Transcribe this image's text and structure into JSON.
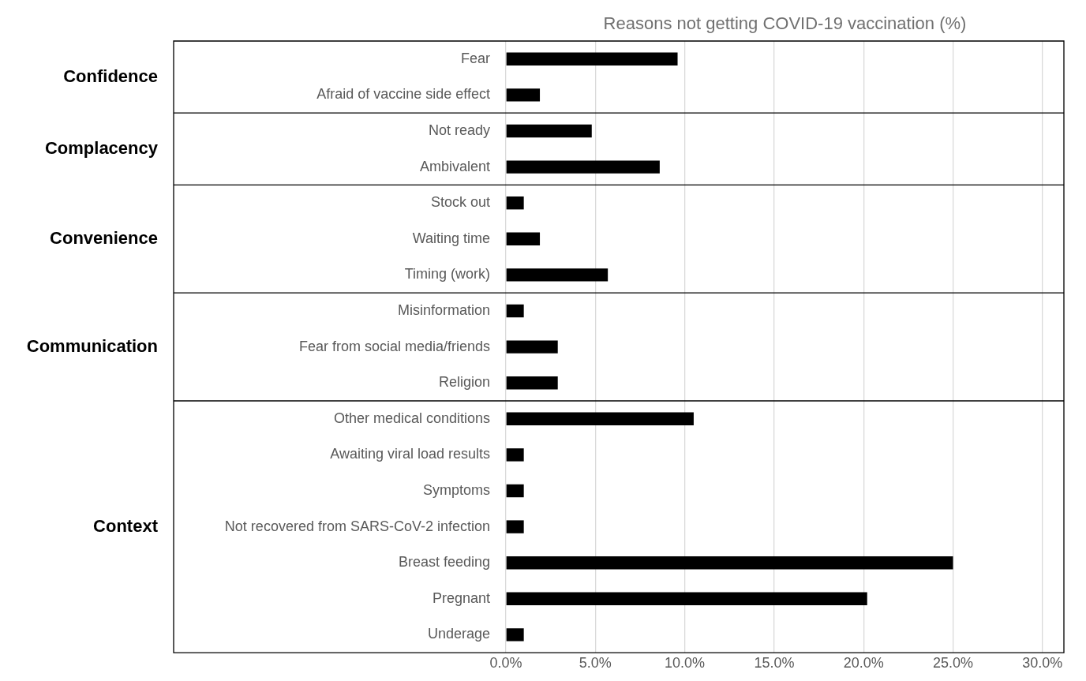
{
  "chart_data": {
    "type": "bar",
    "orientation": "horizontal",
    "title": "Reasons not getting COVID-19 vaccination (%)",
    "categories": [
      "Fear",
      "Afraid of vaccine side effect",
      "Not ready",
      "Ambivalent",
      "Stock out",
      "Waiting time",
      "Timing (work)",
      "Misinformation",
      "Fear from social media/friends",
      "Religion",
      "Other medical conditions",
      "Awaiting viral load results",
      "Symptoms",
      "Not recovered from SARS-CoV-2 infection",
      "Breast feeding",
      "Pregnant",
      "Underage"
    ],
    "values": [
      9.6,
      1.9,
      4.8,
      8.6,
      1.0,
      1.9,
      5.7,
      1.0,
      2.9,
      2.9,
      10.5,
      1.0,
      1.0,
      1.0,
      25.0,
      20.2,
      1.0
    ],
    "color": "#000000",
    "xlim": [
      0,
      31.2
    ],
    "xticks": [
      {
        "value": 0,
        "label": "0.0%"
      },
      {
        "value": 5,
        "label": "5.0%"
      },
      {
        "value": 10,
        "label": "10.0%"
      },
      {
        "value": 15,
        "label": "15.0%"
      },
      {
        "value": 20,
        "label": "20.0%"
      },
      {
        "value": 25,
        "label": "25.0%"
      },
      {
        "value": 30,
        "label": "30.0%"
      }
    ],
    "grid": "x",
    "annotations": [
      "Confidence",
      "Complacency",
      "Convenience",
      "Communication",
      "Context"
    ]
  }
}
